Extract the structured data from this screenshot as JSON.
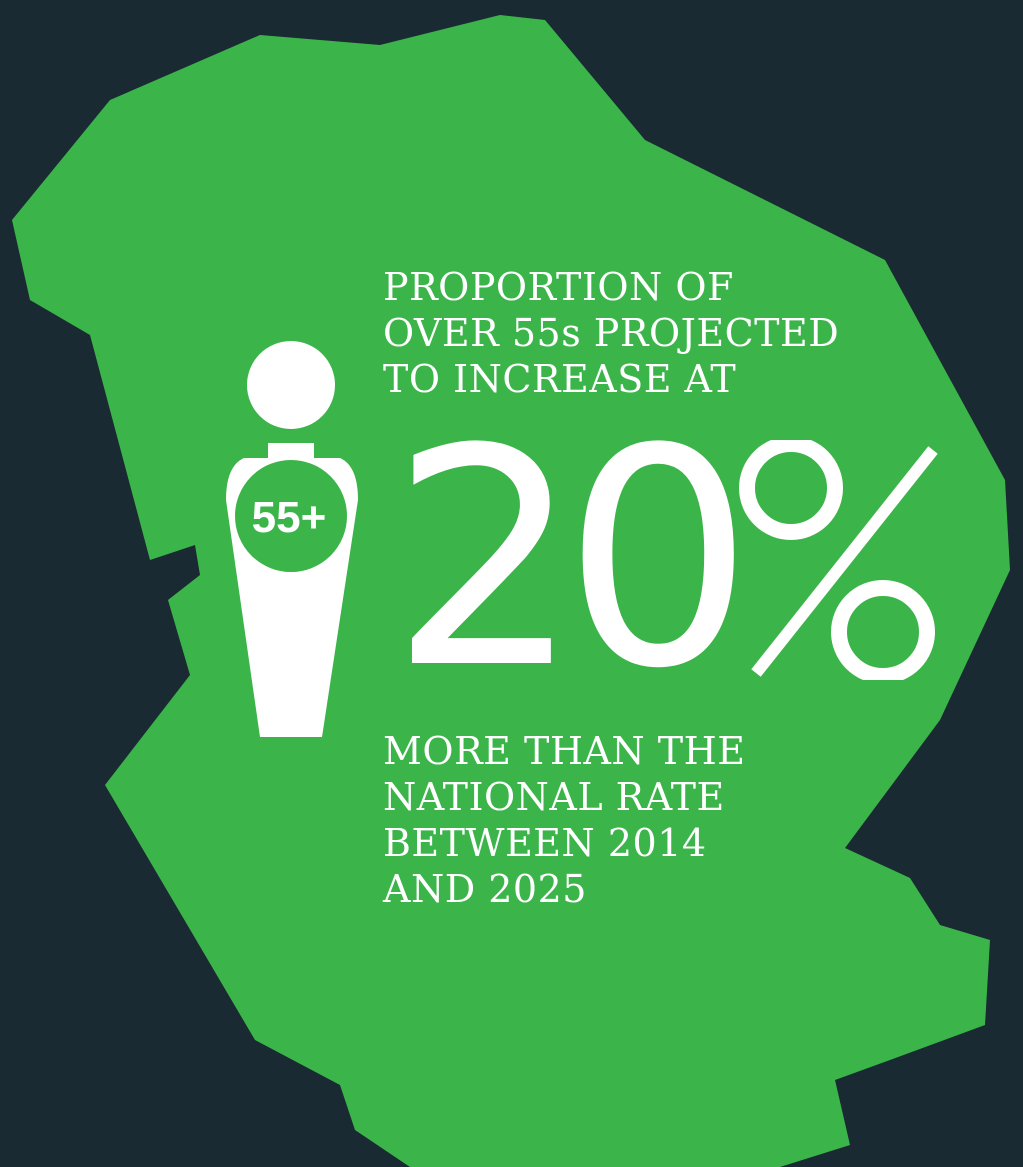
{
  "colors": {
    "background": "#1a2a33",
    "region_fill": "#3bb54a",
    "text": "#ffffff"
  },
  "icon": {
    "name": "person-icon",
    "badge": "55+"
  },
  "intro_lines": [
    "PROPORTION OF",
    "OVER 55s PROJECTED",
    "TO INCREASE AT"
  ],
  "stat": {
    "value": "20",
    "unit": "%"
  },
  "outro_lines": [
    "MORE THAN THE",
    "NATIONAL RATE",
    "BETWEEN 2014",
    "AND 2025"
  ]
}
